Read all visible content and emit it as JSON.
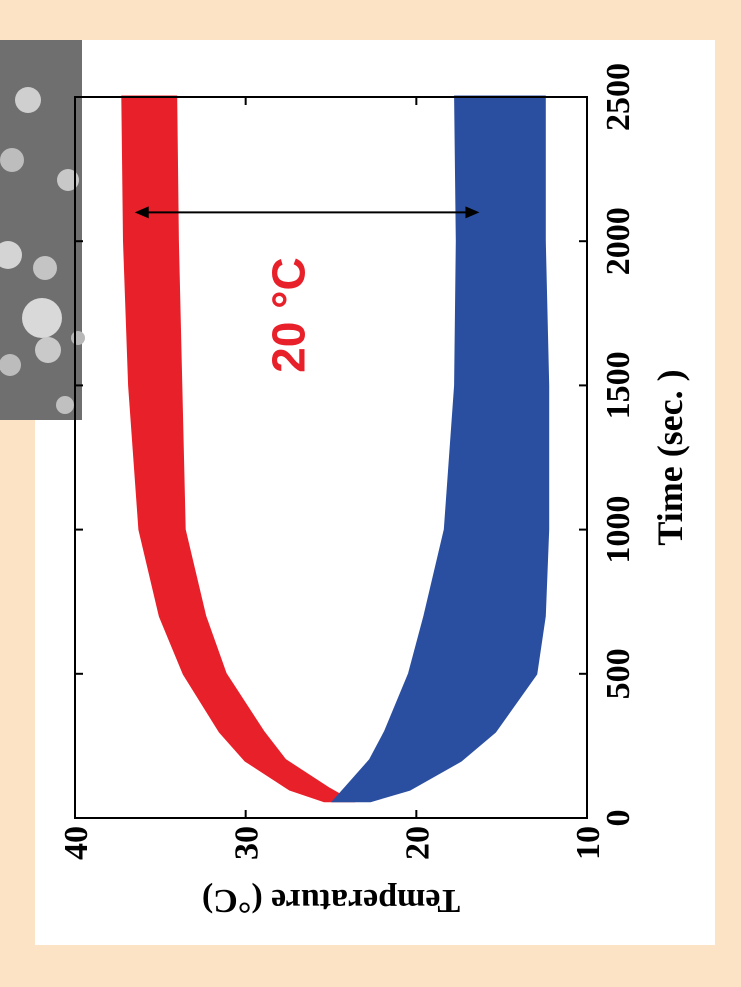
{
  "chart_data": {
    "type": "band",
    "x_label": "Time (sec. )",
    "y_label": "Temperature (°C)",
    "xlim": [
      0,
      2500
    ],
    "xticks": [
      0,
      500,
      1000,
      1500,
      2000,
      2500
    ],
    "ylim": [
      10,
      40
    ],
    "yticks": [
      10,
      20,
      30,
      40
    ],
    "x": [
      60,
      100,
      200,
      300,
      500,
      700,
      1000,
      1500,
      2000,
      2500
    ],
    "series": [
      {
        "color": "#e8202a",
        "high": [
          25.4,
          27.4,
          30.0,
          31.5,
          33.6,
          35.0,
          36.2,
          36.8,
          37.1,
          37.2
        ],
        "low": [
          23.9,
          25.1,
          27.7,
          29.0,
          31.2,
          32.4,
          33.6,
          33.8,
          34.0,
          34.1
        ]
      },
      {
        "color": "#2b4fa0",
        "high": [
          24.8,
          24.2,
          22.7,
          21.8,
          20.4,
          19.5,
          18.3,
          17.7,
          17.6,
          17.7
        ],
        "low": [
          22.7,
          20.4,
          17.4,
          15.4,
          13.0,
          12.5,
          12.3,
          12.3,
          12.5,
          12.5
        ]
      }
    ],
    "annotation": {
      "text": "20 °C",
      "color": "#e8202a",
      "x": 1744,
      "y": 27.5
    },
    "arrow": {
      "x": 2100,
      "y": [
        36.5,
        16.3
      ]
    }
  }
}
